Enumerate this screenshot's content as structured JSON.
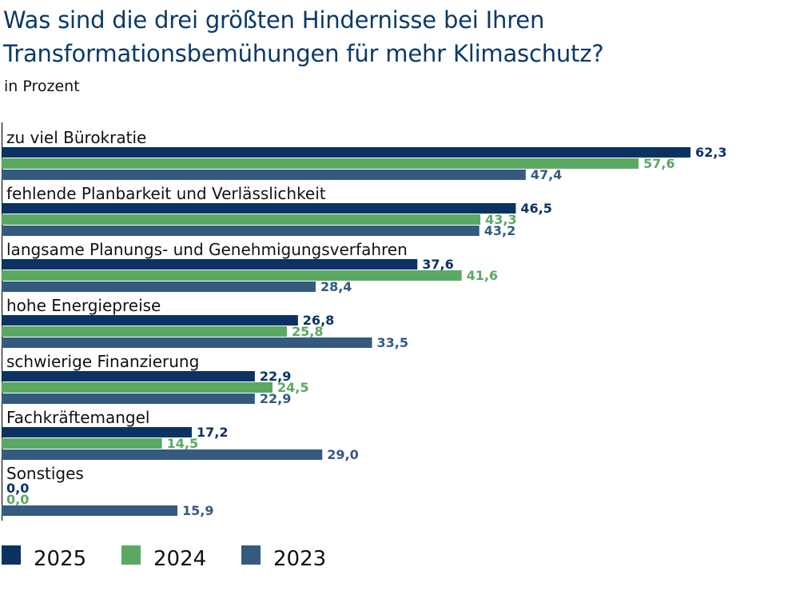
{
  "chart_data": {
    "type": "bar",
    "orientation": "horizontal",
    "title": "Was sind die drei größten Hindernisse bei Ihren Transformationsbemühungen für mehr Klimaschutz?",
    "subtitle": "in Prozent",
    "xlim": [
      0,
      62.3
    ],
    "categories": [
      "zu viel Bürokratie",
      "fehlende Planbarkeit und Verlässlichkeit",
      "langsame Planungs- und Genehmigungsverfahren",
      "hohe Energiepreise",
      "schwierige Finanzierung",
      "Fachkräftemangel",
      "Sonstiges"
    ],
    "series": [
      {
        "name": "2025",
        "color": "#0b3361",
        "values": [
          62.3,
          46.5,
          37.6,
          26.8,
          22.9,
          17.2,
          0.0
        ],
        "labels": [
          "62,3",
          "46,5",
          "37,6",
          "26,8",
          "22,9",
          "17,2",
          "0,0"
        ]
      },
      {
        "name": "2024",
        "color": "#5aa862",
        "values": [
          57.6,
          43.3,
          41.6,
          25.8,
          24.5,
          14.5,
          0.0
        ],
        "labels": [
          "57,6",
          "43,3",
          "41,6",
          "25,8",
          "24,5",
          "14,5",
          "0,0"
        ]
      },
      {
        "name": "2023",
        "color": "#345a80",
        "values": [
          47.4,
          43.2,
          28.4,
          33.5,
          22.9,
          29.0,
          15.9
        ],
        "labels": [
          "47,4",
          "43,2",
          "28,4",
          "33,5",
          "22,9",
          "29,0",
          "15,9"
        ]
      }
    ],
    "legend": [
      "2025",
      "2024",
      "2023"
    ],
    "legend_position": "bottom-left"
  }
}
